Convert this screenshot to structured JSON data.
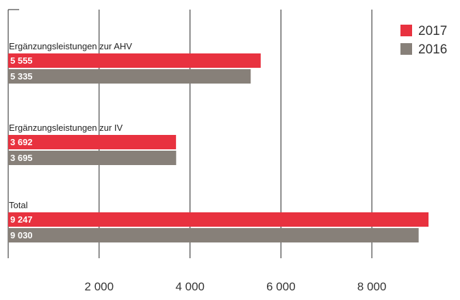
{
  "chart_data": {
    "type": "bar",
    "orientation": "horizontal",
    "categories": [
      "Ergänzungsleistungen zur AHV",
      "Ergänzungsleistungen zur IV",
      "Total"
    ],
    "series": [
      {
        "name": "2017",
        "color": "#e8323f",
        "values": [
          5555,
          3692,
          9247
        ],
        "labels": [
          "5 555",
          "3 692",
          "9 247"
        ]
      },
      {
        "name": "2016",
        "color": "#878079",
        "values": [
          5335,
          3695,
          9030
        ],
        "labels": [
          "5 335",
          "3 695",
          "9 030"
        ]
      }
    ],
    "x_ticks": [
      2000,
      4000,
      6000,
      8000
    ],
    "x_tick_labels": [
      "2 000",
      "4 000",
      "6 000",
      "8 000"
    ],
    "xlim": [
      0,
      10000
    ],
    "grid": true,
    "legend_position": "top-right",
    "title": "",
    "xlabel": "",
    "ylabel": ""
  }
}
